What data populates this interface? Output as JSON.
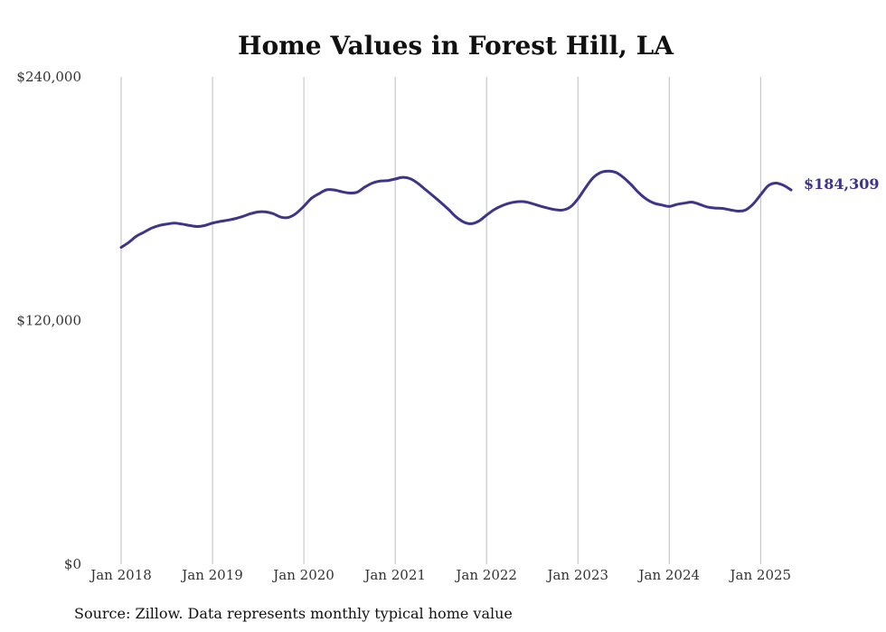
{
  "chart_data": {
    "type": "line",
    "title": "Home Values in Forest Hill, LA",
    "xlabel": "",
    "ylabel": "",
    "ylim": [
      0,
      240000
    ],
    "xlim": [
      "2018-01",
      "2025-05"
    ],
    "y_ticks": [
      0,
      120000,
      240000
    ],
    "y_tick_labels": [
      "$0",
      "$120,000",
      "$240,000"
    ],
    "x_ticks": [
      "2018-01",
      "2019-01",
      "2020-01",
      "2021-01",
      "2022-01",
      "2023-01",
      "2024-01",
      "2025-01"
    ],
    "x_tick_labels": [
      "Jan 2018",
      "Jan 2019",
      "Jan 2020",
      "Jan 2021",
      "Jan 2022",
      "Jan 2023",
      "Jan 2024",
      "Jan 2025"
    ],
    "grid": {
      "vertical": true,
      "horizontal": false
    },
    "legend": "none",
    "line_color": "#3d3589",
    "end_label": "$184,309",
    "source_note": "Source: Zillow. Data represents monthly typical home value",
    "series": [
      {
        "dates": [
          "2018-01",
          "2018-02",
          "2018-03",
          "2018-04",
          "2018-05",
          "2018-06",
          "2018-07",
          "2018-08",
          "2018-09",
          "2018-10",
          "2018-11",
          "2018-12",
          "2019-01",
          "2019-02",
          "2019-03",
          "2019-04",
          "2019-05",
          "2019-06",
          "2019-07",
          "2019-08",
          "2019-09",
          "2019-10",
          "2019-11",
          "2019-12",
          "2020-01",
          "2020-02",
          "2020-03",
          "2020-04",
          "2020-05",
          "2020-06",
          "2020-07",
          "2020-08",
          "2020-09",
          "2020-10",
          "2020-11",
          "2020-12",
          "2021-01",
          "2021-02",
          "2021-03",
          "2021-04",
          "2021-05",
          "2021-06",
          "2021-07",
          "2021-08",
          "2021-09",
          "2021-10",
          "2021-11",
          "2021-12",
          "2022-01",
          "2022-02",
          "2022-03",
          "2022-04",
          "2022-05",
          "2022-06",
          "2022-07",
          "2022-08",
          "2022-09",
          "2022-10",
          "2022-11",
          "2022-12",
          "2023-01",
          "2023-02",
          "2023-03",
          "2023-04",
          "2023-05",
          "2023-06",
          "2023-07",
          "2023-08",
          "2023-09",
          "2023-10",
          "2023-11",
          "2023-12",
          "2024-01",
          "2024-02",
          "2024-03",
          "2024-04",
          "2024-05",
          "2024-06",
          "2024-07",
          "2024-08",
          "2024-09",
          "2024-10",
          "2024-11",
          "2024-12",
          "2025-01",
          "2025-02",
          "2025-03",
          "2025-04",
          "2025-05"
        ],
        "values": [
          156000,
          158500,
          161500,
          163500,
          165500,
          166800,
          167500,
          168000,
          167500,
          166800,
          166300,
          166800,
          168000,
          168800,
          169400,
          170200,
          171300,
          172600,
          173500,
          173500,
          172600,
          170900,
          170800,
          172800,
          176300,
          180200,
          182500,
          184400,
          184300,
          183400,
          182800,
          183200,
          185700,
          187700,
          188700,
          188900,
          189700,
          190500,
          189800,
          187500,
          184400,
          181300,
          178100,
          174700,
          171000,
          168500,
          167700,
          169000,
          171900,
          174600,
          176500,
          177800,
          178500,
          178500,
          177600,
          176400,
          175400,
          174600,
          174400,
          175900,
          179900,
          185400,
          190300,
          192900,
          193600,
          192900,
          190400,
          186900,
          182900,
          179800,
          177800,
          176900,
          176200,
          177200,
          177800,
          178300,
          177200,
          175900,
          175400,
          175200,
          174500,
          173900,
          174400,
          177300,
          181900,
          186400,
          187700,
          186600,
          184309
        ]
      }
    ]
  }
}
